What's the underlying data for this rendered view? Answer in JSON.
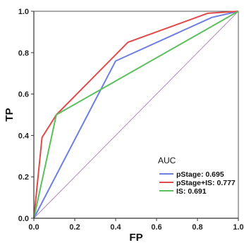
{
  "chart_data": {
    "type": "line",
    "xlabel": "FP",
    "ylabel": "TP",
    "xlim": [
      0.0,
      1.0
    ],
    "ylim": [
      0.0,
      1.0
    ],
    "xticks": [
      "0.0",
      "0.2",
      "0.4",
      "0.6",
      "0.8",
      "1.0"
    ],
    "yticks": [
      "0.0",
      "0.2",
      "0.4",
      "0.6",
      "0.8",
      "1.0"
    ],
    "grid": false,
    "legend": {
      "title": "AUC",
      "placement": "bottom-right"
    },
    "series": [
      {
        "name": "pStage: 0.695",
        "color": "#6f7fe0",
        "x": [
          0.0,
          0.4,
          0.87,
          1.0
        ],
        "y": [
          0.0,
          0.76,
          0.97,
          1.0
        ]
      },
      {
        "name": "pStage+IS: 0.777",
        "color": "#e04a4a",
        "x": [
          0.0,
          0.04,
          0.11,
          0.46,
          0.85,
          1.0
        ],
        "y": [
          0.0,
          0.39,
          0.5,
          0.85,
          0.99,
          1.0
        ]
      },
      {
        "name": "IS: 0.691",
        "color": "#5cbf5c",
        "x": [
          0.0,
          0.11,
          1.0
        ],
        "y": [
          0.0,
          0.5,
          1.0
        ]
      }
    ],
    "reference_line": {
      "color": "#b08ab8",
      "x": [
        0.0,
        1.0
      ],
      "y": [
        0.0,
        1.0
      ]
    }
  }
}
